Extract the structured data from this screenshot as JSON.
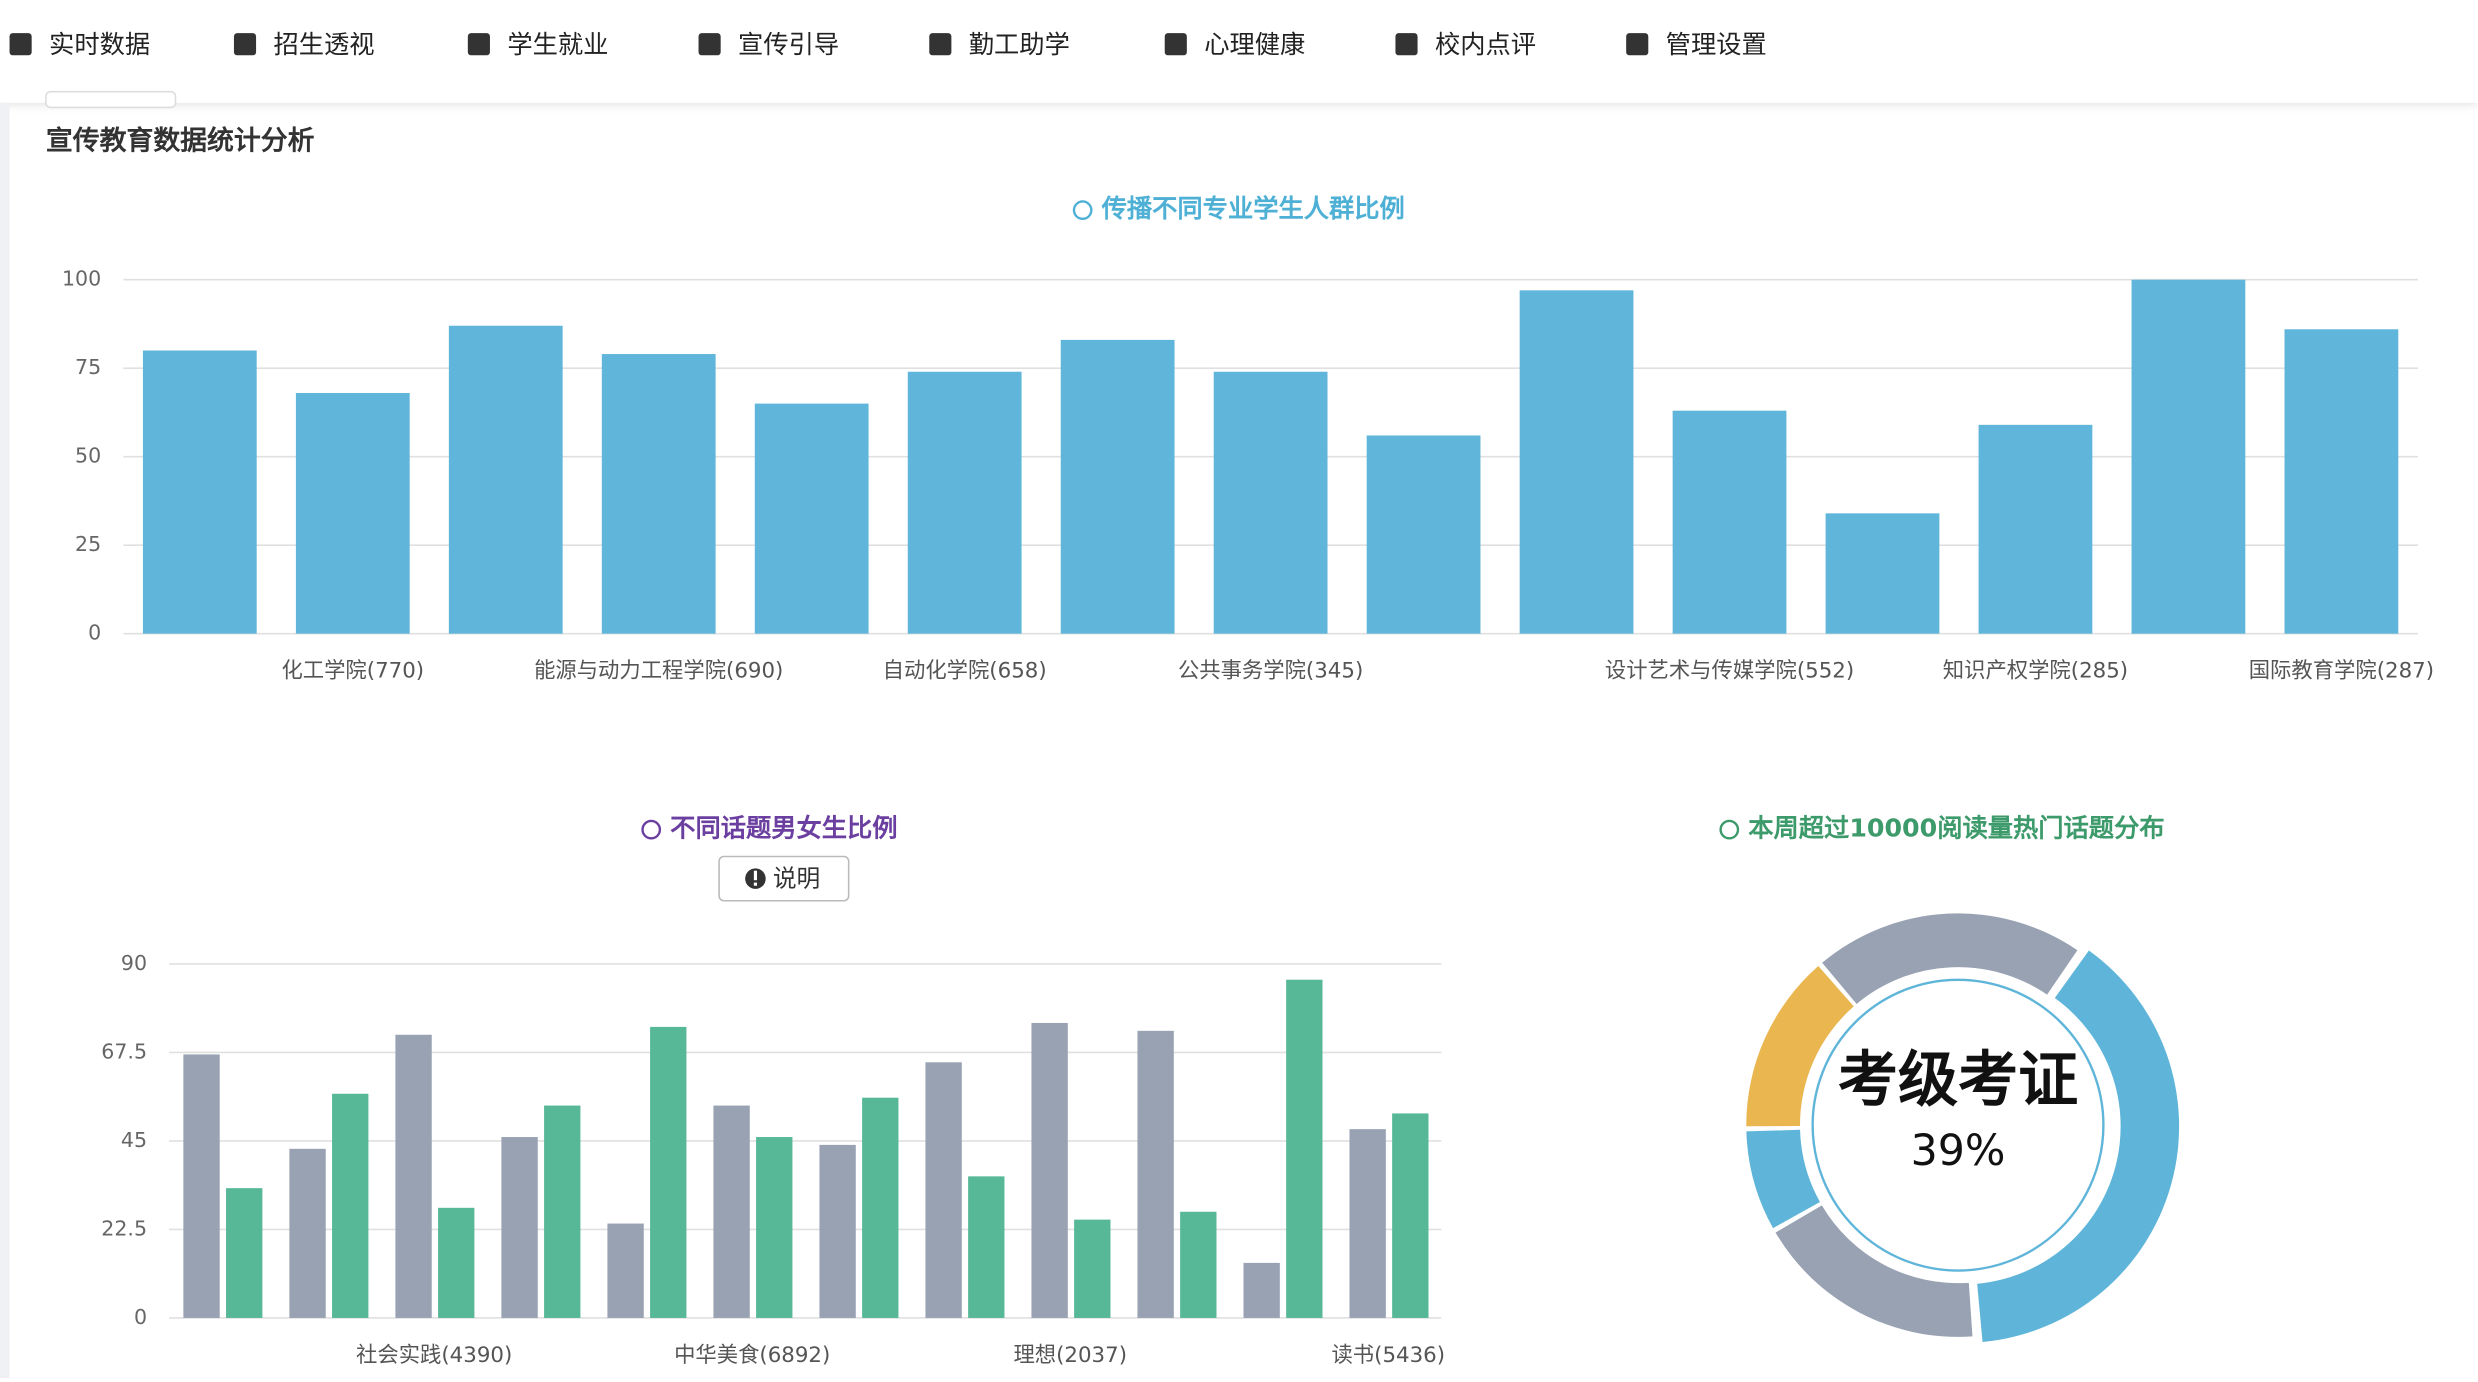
{
  "nav": {
    "items": [
      "实时数据",
      "招生透视",
      "学生就业",
      "宣传引导",
      "勤工助学",
      "心理健康",
      "校内点评",
      "管理设置"
    ]
  },
  "header": {
    "title": "宣传教育数据统计分析"
  },
  "explain_button": "说明",
  "chart_data": [
    {
      "type": "bar",
      "title": "传播不同专业学生人群比例",
      "color": "#60b6da",
      "categories": [
        null,
        "化工学院(770)",
        null,
        "能源与动力工程学院(690)",
        null,
        "自动化学院(658)",
        null,
        "公共事务学院(345)",
        null,
        null,
        "设计艺术与传媒学院(552)",
        null,
        "知识产权学院(285)",
        null,
        "国际教育学院(287)"
      ],
      "values": [
        80,
        68,
        87,
        79,
        65,
        74,
        83,
        74,
        56,
        97,
        63,
        34,
        59,
        100,
        86
      ],
      "ylim": [
        0,
        100
      ],
      "yticks": [
        0,
        25,
        50,
        75,
        100
      ],
      "grid": true
    },
    {
      "type": "grouped_bar",
      "title": "不同话题男女生比例",
      "categories": [
        null,
        null,
        "社会实践(4390)",
        null,
        null,
        "中华美食(6892)",
        null,
        null,
        "理想(2037)",
        null,
        null,
        "读书(5436)"
      ],
      "series": [
        {
          "color": "#98a2b3",
          "values": [
            67,
            43,
            72,
            46,
            24,
            54,
            44,
            65,
            75,
            73,
            14,
            48
          ]
        },
        {
          "color": "#57b897",
          "values": [
            33,
            57,
            28,
            54,
            74,
            46,
            56,
            36,
            25,
            27,
            86,
            52
          ]
        }
      ],
      "ylim": [
        0,
        90
      ],
      "yticks": [
        0,
        22.5,
        45,
        67.5,
        90
      ],
      "grid": true
    },
    {
      "type": "pie",
      "title": "本周超过10000阅读量热门话题分布",
      "categories": [
        "考级考证",
        null,
        null,
        null,
        null
      ],
      "values": [
        39,
        18,
        8,
        14,
        21
      ],
      "value_labels": [
        "39%",
        null,
        null,
        null,
        null
      ],
      "colors": [
        "#5fb5d9",
        "#98a2b3",
        "#5fb5d9",
        "#e9b650",
        "#98a2b3"
      ],
      "highlight": 0
    }
  ]
}
